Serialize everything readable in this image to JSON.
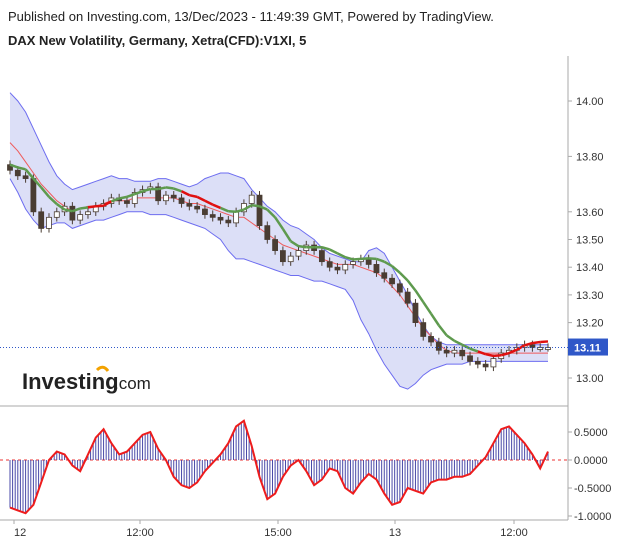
{
  "header": {
    "publisher": "Published on Investing.com, 13/Dec/2023 - 11:49:39 GMT, Powered by TradingView.",
    "symbol": "DAX New Volatility, Germany, Xetra(CFD):V1XI, 5"
  },
  "logo": {
    "brand": "Investing",
    "suffix": ".com"
  },
  "colors": {
    "bb_fill": "#dcdff7",
    "bb_line": "#6d6df0",
    "sma": "#ef5b5b",
    "green_line": "#5e9a4e",
    "red_line": "#e01010",
    "candle_up": "#ffffff",
    "candle_down": "#4a3d33",
    "last_price_bg": "#2f57c8",
    "oscillator_line": "#ee1c1c",
    "oscillator_hist": "#4a4aa8",
    "zero_line": "#ee3333"
  },
  "chart_data": [
    {
      "type": "candlestick",
      "title": "DAX New Volatility, Germany, Xetra(CFD):V1XI, 5",
      "x_ticks": [
        "12",
        "12:00",
        "15:00",
        "13",
        "12:00"
      ],
      "y_ticks": [
        "14.00",
        "13.80",
        "13.60",
        "13.50",
        "13.40",
        "13.30",
        "13.20",
        "13.00"
      ],
      "ylim": [
        12.92,
        14.15
      ],
      "last_price": "13.11",
      "series": [
        {
          "name": "Close",
          "values": [
            13.75,
            13.73,
            13.72,
            13.6,
            13.54,
            13.58,
            13.6,
            13.62,
            13.57,
            13.59,
            13.6,
            13.62,
            13.63,
            13.65,
            13.64,
            13.63,
            13.67,
            13.68,
            13.69,
            13.64,
            13.66,
            13.65,
            13.63,
            13.62,
            13.61,
            13.59,
            13.58,
            13.57,
            13.56,
            13.6,
            13.63,
            13.66,
            13.55,
            13.5,
            13.46,
            13.42,
            13.44,
            13.46,
            13.48,
            13.46,
            13.42,
            13.4,
            13.39,
            13.41,
            13.42,
            13.43,
            13.41,
            13.38,
            13.36,
            13.34,
            13.31,
            13.27,
            13.2,
            13.15,
            13.13,
            13.1,
            13.09,
            13.1,
            13.08,
            13.06,
            13.05,
            13.04,
            13.07,
            13.09,
            13.1,
            13.11,
            13.12,
            13.11,
            13.11,
            13.11
          ]
        },
        {
          "name": "Upper Band",
          "values": [
            14.03,
            14,
            13.96,
            13.9,
            13.84,
            13.78,
            13.73,
            13.7,
            13.68,
            13.69,
            13.7,
            13.71,
            13.72,
            13.73,
            13.72,
            13.72,
            13.71,
            13.71,
            13.71,
            13.72,
            13.72,
            13.71,
            13.7,
            13.69,
            13.7,
            13.72,
            13.73,
            13.74,
            13.74,
            13.73,
            13.72,
            13.68,
            13.65,
            13.62,
            13.6,
            13.57,
            13.55,
            13.54,
            13.52,
            13.5,
            13.47,
            13.45,
            13.44,
            13.43,
            13.42,
            13.42,
            13.46,
            13.47,
            13.45,
            13.4,
            13.35,
            13.3,
            13.24,
            13.19,
            13.15,
            13.13,
            13.12,
            13.12,
            13.12,
            13.12,
            13.12,
            13.12,
            13.12,
            13.12,
            13.12,
            13.12,
            13.12,
            13.12,
            13.12,
            13.12
          ]
        },
        {
          "name": "Basis",
          "values": [
            13.85,
            13.82,
            13.78,
            13.74,
            13.7,
            13.67,
            13.64,
            13.62,
            13.6,
            13.61,
            13.62,
            13.62,
            13.63,
            13.64,
            13.64,
            13.64,
            13.65,
            13.65,
            13.65,
            13.65,
            13.65,
            13.65,
            13.64,
            13.63,
            13.63,
            13.62,
            13.61,
            13.6,
            13.59,
            13.58,
            13.58,
            13.56,
            13.54,
            13.52,
            13.5,
            13.48,
            13.47,
            13.46,
            13.45,
            13.44,
            13.43,
            13.42,
            13.41,
            13.41,
            13.41,
            13.4,
            13.39,
            13.38,
            13.36,
            13.33,
            13.3,
            13.26,
            13.22,
            13.18,
            13.15,
            13.12,
            13.1,
            13.09,
            13.09,
            13.09,
            13.09,
            13.09,
            13.09,
            13.09,
            13.09,
            13.09,
            13.09,
            13.09,
            13.09,
            13.09
          ]
        },
        {
          "name": "Lower Band",
          "values": [
            13.72,
            13.67,
            13.61,
            13.57,
            13.54,
            13.55,
            13.56,
            13.56,
            13.54,
            13.55,
            13.56,
            13.57,
            13.57,
            13.58,
            13.59,
            13.6,
            13.6,
            13.6,
            13.59,
            13.59,
            13.59,
            13.58,
            13.57,
            13.56,
            13.55,
            13.54,
            13.52,
            13.5,
            13.46,
            13.43,
            13.43,
            13.42,
            13.41,
            13.4,
            13.39,
            13.38,
            13.37,
            13.37,
            13.36,
            13.35,
            13.35,
            13.34,
            13.33,
            13.32,
            13.28,
            13.21,
            13.16,
            13.1,
            13.05,
            13.01,
            12.97,
            12.96,
            12.98,
            13.01,
            13.03,
            13.04,
            13.05,
            13.05,
            13.05,
            13.06,
            13.06,
            13.06,
            13.06,
            13.06,
            13.06,
            13.06,
            13.06,
            13.06,
            13.06,
            13.06
          ]
        }
      ]
    },
    {
      "type": "bar",
      "y_ticks": [
        "0.5000",
        "0.0000",
        "-0.5000",
        "-1.0000"
      ],
      "ylim": [
        -1.05,
        0.8
      ],
      "series": [
        {
          "name": "Oscillator",
          "values": [
            -0.85,
            -0.9,
            -0.95,
            -0.8,
            -0.4,
            0.0,
            0.15,
            0.1,
            -0.1,
            -0.2,
            0.1,
            0.4,
            0.55,
            0.3,
            0.1,
            0.15,
            0.3,
            0.45,
            0.5,
            0.2,
            0.0,
            -0.3,
            -0.45,
            -0.5,
            -0.4,
            -0.2,
            -0.05,
            0.1,
            0.3,
            0.6,
            0.7,
            0.25,
            -0.3,
            -0.7,
            -0.6,
            -0.3,
            -0.1,
            0.0,
            -0.2,
            -0.45,
            -0.35,
            -0.15,
            -0.2,
            -0.5,
            -0.6,
            -0.4,
            -0.25,
            -0.35,
            -0.6,
            -0.8,
            -0.75,
            -0.5,
            -0.55,
            -0.6,
            -0.4,
            -0.35,
            -0.35,
            -0.3,
            -0.3,
            -0.25,
            -0.1,
            0.05,
            0.3,
            0.55,
            0.6,
            0.45,
            0.3,
            0.1,
            -0.15,
            0.15
          ]
        }
      ]
    }
  ]
}
